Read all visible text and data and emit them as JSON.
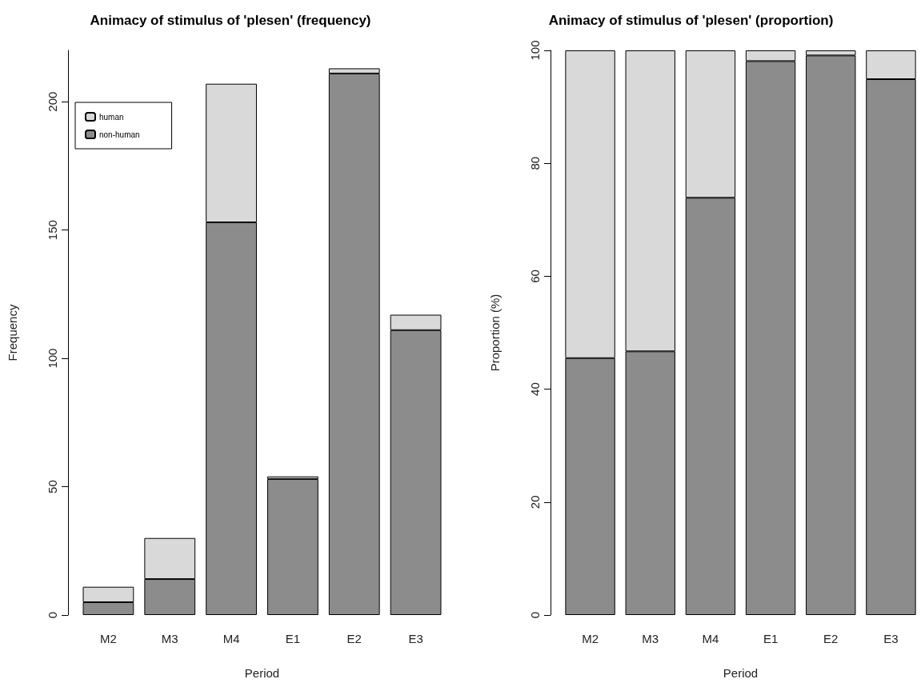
{
  "chart_data": [
    {
      "type": "bar",
      "title": "Animacy of stimulus of 'plesen' (frequency)",
      "xlabel": "Period",
      "ylabel": "Frequency",
      "categories": [
        "M2",
        "M3",
        "M4",
        "E1",
        "E2",
        "E3"
      ],
      "stacked": true,
      "series": [
        {
          "name": "non-human",
          "color": "#8c8c8c",
          "values": [
            5,
            14,
            153,
            53,
            211,
            111
          ]
        },
        {
          "name": "human",
          "color": "#d9d9d9",
          "values": [
            6,
            16,
            54,
            1,
            2,
            6
          ]
        }
      ],
      "ylim": [
        0,
        220
      ],
      "yticks": [
        0,
        50,
        100,
        150,
        200
      ],
      "grid": false,
      "legend": "top left"
    },
    {
      "type": "bar",
      "title": "Animacy of stimulus of 'plesen' (proportion)",
      "xlabel": "Period",
      "ylabel": "Proportion (%)",
      "categories": [
        "M2",
        "M3",
        "M4",
        "E1",
        "E2",
        "E3"
      ],
      "stacked": true,
      "series": [
        {
          "color": "#8c8c8c",
          "values": [
            45.5,
            46.7,
            73.9,
            98.1,
            99.1,
            94.9
          ]
        },
        {
          "color": "#d9d9d9",
          "values": [
            54.5,
            53.3,
            26.1,
            1.9,
            0.9,
            5.1
          ]
        }
      ],
      "ylim": [
        0,
        100
      ],
      "yticks": [
        0,
        20,
        40,
        60,
        80,
        100
      ],
      "grid": false,
      "legend": false
    }
  ]
}
